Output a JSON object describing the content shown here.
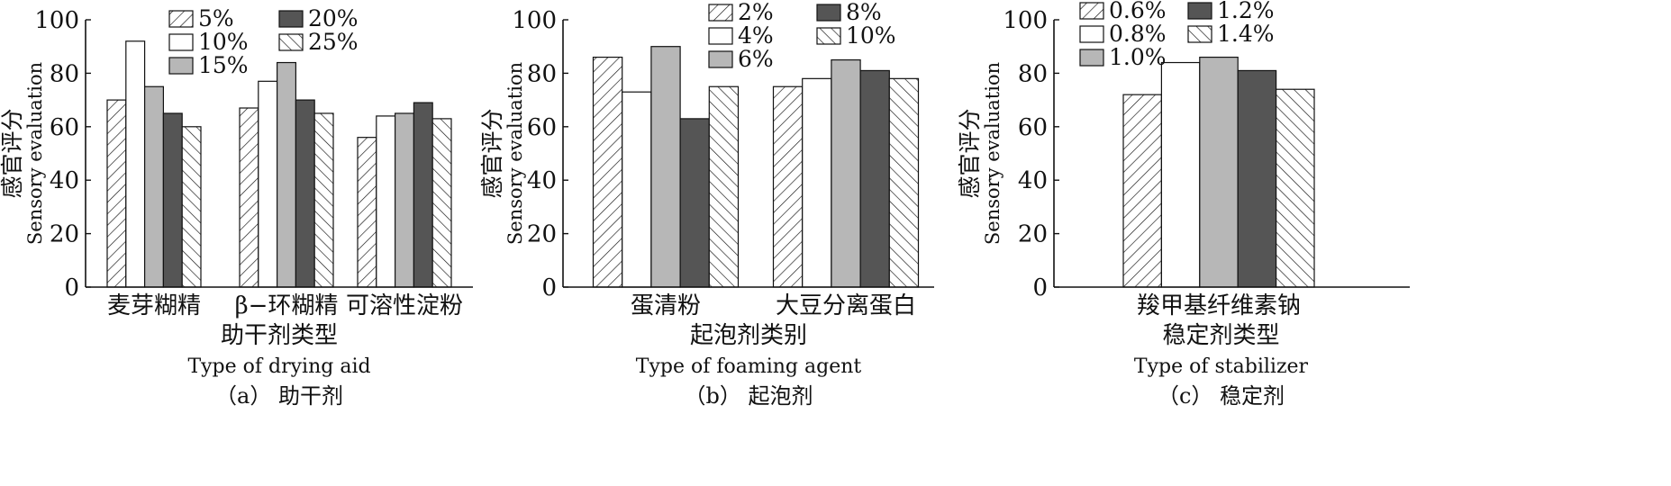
{
  "chart_data": [
    {
      "type": "bar",
      "panel": "(a) 助干剂",
      "categories": [
        "麦芽糊精",
        "β−环糊精",
        "可溶性淀粉"
      ],
      "series": [
        {
          "name": "5%",
          "values": [
            70,
            67,
            56
          ]
        },
        {
          "name": "10%",
          "values": [
            92,
            77,
            64
          ]
        },
        {
          "name": "15%",
          "values": [
            75,
            84,
            65
          ]
        },
        {
          "name": "20%",
          "values": [
            65,
            70,
            69
          ]
        },
        {
          "name": "25%",
          "values": [
            60,
            65,
            63
          ]
        }
      ],
      "xlabel_cn": "助干剂类型",
      "xlabel_en": "Type of drying aid",
      "caption": "（a） 助干剂",
      "ylabel_cn": "感官评分",
      "ylabel_en": "Sensory evaluation",
      "ylim": [
        0,
        100
      ],
      "yticks": [
        0,
        20,
        40,
        60,
        80,
        100
      ],
      "legend_placement": "top",
      "grid": false
    },
    {
      "type": "bar",
      "panel": "(b) 起泡剂",
      "categories": [
        "蛋清粉",
        "大豆分离蛋白"
      ],
      "series": [
        {
          "name": "2%",
          "values": [
            86,
            75
          ]
        },
        {
          "name": "4%",
          "values": [
            73,
            78
          ]
        },
        {
          "name": "6%",
          "values": [
            90,
            85
          ]
        },
        {
          "name": "8%",
          "values": [
            63,
            81
          ]
        },
        {
          "name": "10%",
          "values": [
            75,
            78
          ]
        }
      ],
      "xlabel_cn": "起泡剂类别",
      "xlabel_en": "Type of foaming agent",
      "caption": "（b） 起泡剂",
      "ylabel_cn": "感官评分",
      "ylabel_en": "Sensory evaluation",
      "ylim": [
        0,
        100
      ],
      "yticks": [
        0,
        20,
        40,
        60,
        80,
        100
      ],
      "legend_placement": "top",
      "grid": false
    },
    {
      "type": "bar",
      "panel": "(c) 稳定剂",
      "categories": [
        "羧甲基纤维素钠"
      ],
      "series": [
        {
          "name": "0.6%",
          "values": [
            72
          ]
        },
        {
          "name": "0.8%",
          "values": [
            84
          ]
        },
        {
          "name": "1.0%",
          "values": [
            86
          ]
        },
        {
          "name": "1.2%",
          "values": [
            81
          ]
        },
        {
          "name": "1.4%",
          "values": [
            74
          ]
        }
      ],
      "xlabel_cn": "稳定剂类型",
      "xlabel_en": "Type of stabilizer",
      "caption": "（c） 稳定剂",
      "ylabel_cn": "感官评分",
      "ylabel_en": "Sensory evaluation",
      "ylim": [
        0,
        100
      ],
      "yticks": [
        0,
        20,
        40,
        60,
        80,
        100
      ],
      "legend_placement": "top",
      "grid": false
    }
  ],
  "styles": {
    "series_fills": [
      "hatch-fwd",
      "white",
      "#b7b7b7",
      "#555555",
      "hatch-back"
    ],
    "bar_edge": "#111111",
    "axis_color": "#111111"
  }
}
